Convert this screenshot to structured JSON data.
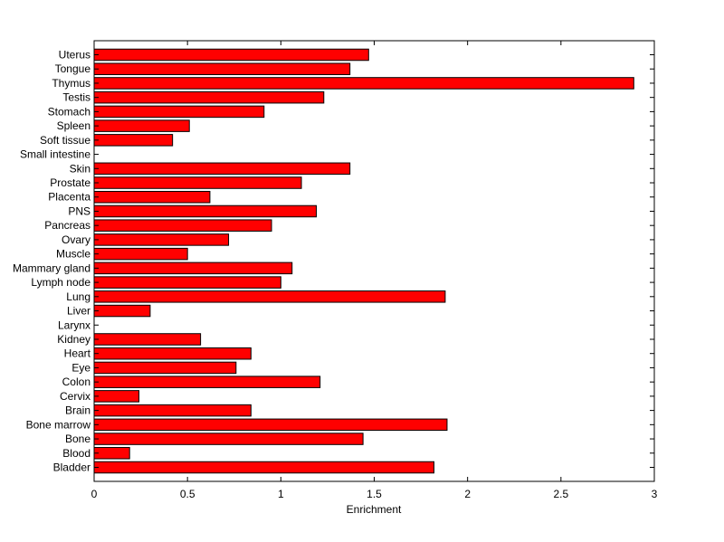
{
  "chart_data": {
    "type": "bar",
    "orientation": "horizontal",
    "title": "",
    "xlabel": "Enrichment",
    "ylabel": "",
    "xlim": [
      0,
      3
    ],
    "xticks": [
      "0",
      "0.5",
      "1",
      "1.5",
      "2",
      "2.5",
      "3"
    ],
    "categories": [
      "Bladder",
      "Blood",
      "Bone",
      "Bone marrow",
      "Brain",
      "Cervix",
      "Colon",
      "Eye",
      "Heart",
      "Kidney",
      "Larynx",
      "Liver",
      "Lung",
      "Lymph node",
      "Mammary gland",
      "Muscle",
      "Ovary",
      "Pancreas",
      "PNS",
      "Placenta",
      "Prostate",
      "Skin",
      "Small intestine",
      "Soft tissue",
      "Spleen",
      "Stomach",
      "Testis",
      "Thymus",
      "Tongue",
      "Uterus"
    ],
    "values": [
      1.82,
      0.19,
      1.44,
      1.89,
      0.84,
      0.24,
      1.21,
      0.76,
      0.84,
      0.57,
      0.0,
      0.3,
      1.88,
      1.0,
      1.06,
      0.5,
      0.72,
      0.95,
      1.19,
      0.62,
      1.11,
      1.37,
      0.0,
      0.42,
      0.51,
      0.91,
      1.23,
      2.89,
      1.37,
      1.47
    ],
    "bar_color": "#ff0000",
    "grid": false,
    "legend": "none"
  }
}
